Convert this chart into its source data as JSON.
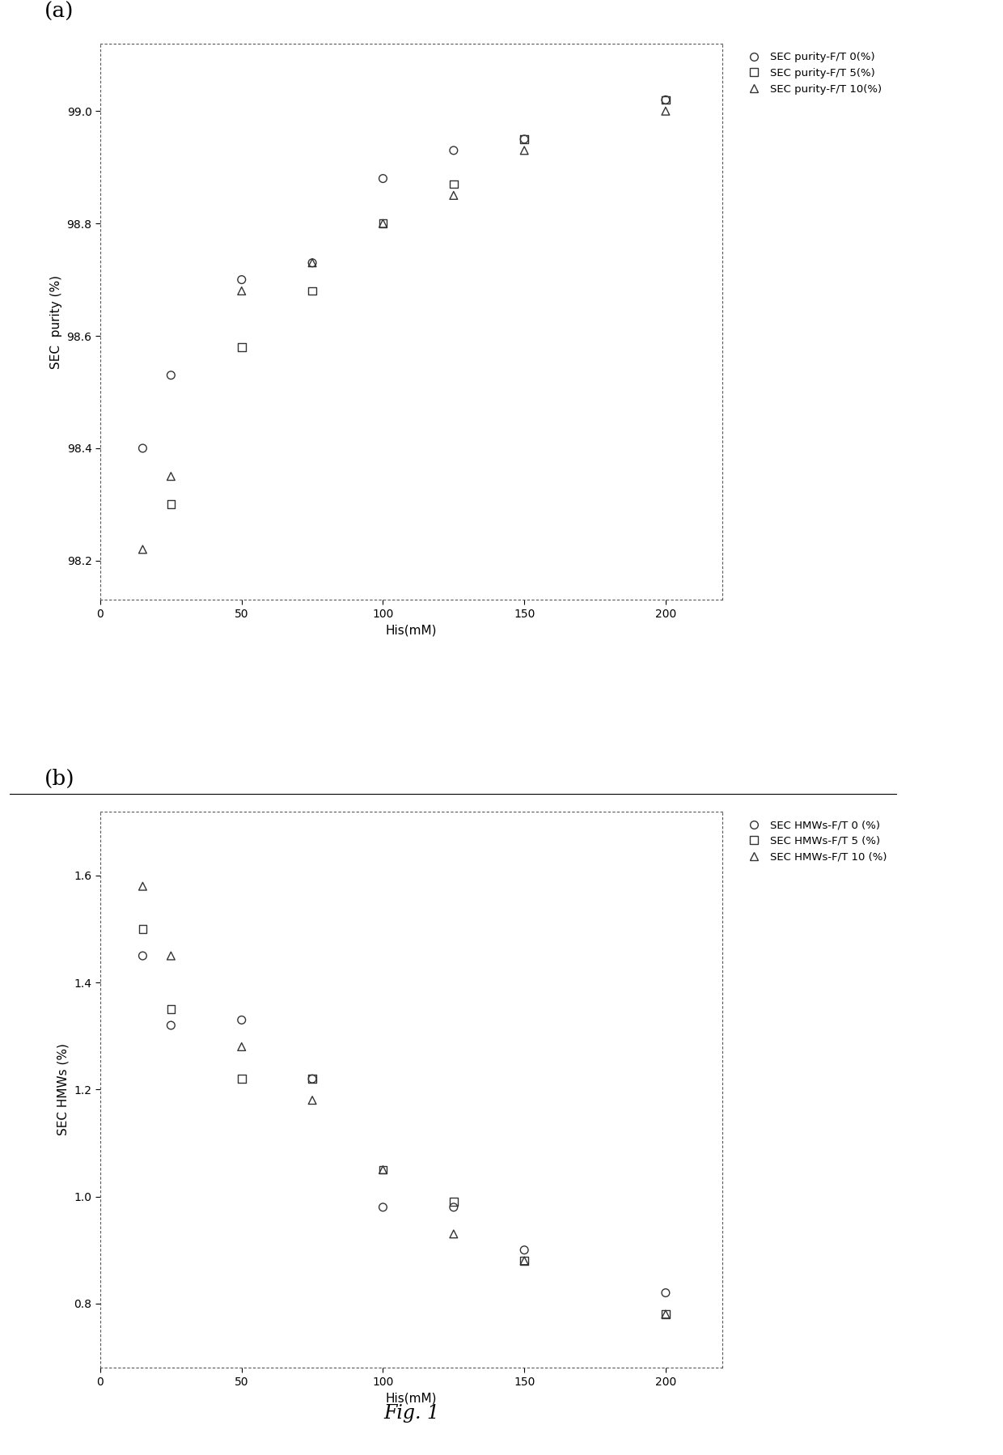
{
  "panel_a": {
    "title": "(a)",
    "xlabel": "His(mM)",
    "ylabel": "SEC  purity (%)",
    "xlim": [
      0,
      220
    ],
    "ylim": [
      98.13,
      99.12
    ],
    "yticks": [
      98.2,
      98.4,
      98.6,
      98.8,
      99.0
    ],
    "xticks": [
      0,
      50,
      100,
      150,
      200
    ],
    "series": {
      "F/T 0": {
        "x": [
          15,
          25,
          50,
          75,
          100,
          125,
          150,
          200
        ],
        "y": [
          98.4,
          98.53,
          98.7,
          98.73,
          98.88,
          98.93,
          98.95,
          99.02
        ],
        "marker": "o",
        "label": "SEC purity-F/T 0(%)"
      },
      "F/T 5": {
        "x": [
          25,
          50,
          75,
          100,
          125,
          150,
          200
        ],
        "y": [
          98.3,
          98.58,
          98.68,
          98.8,
          98.87,
          98.95,
          99.02
        ],
        "marker": "s",
        "label": "SEC purity-F/T 5(%)"
      },
      "F/T 10": {
        "x": [
          15,
          25,
          50,
          75,
          100,
          125,
          150,
          200
        ],
        "y": [
          98.22,
          98.35,
          98.68,
          98.73,
          98.8,
          98.85,
          98.93,
          99.0
        ],
        "marker": "^",
        "label": "SEC purity-F/T 10(%)"
      }
    }
  },
  "panel_b": {
    "title": "(b)",
    "xlabel": "His(mM)",
    "ylabel": "SEC HMWs (%)",
    "xlim": [
      0,
      220
    ],
    "ylim": [
      0.68,
      1.72
    ],
    "yticks": [
      0.8,
      1.0,
      1.2,
      1.4,
      1.6
    ],
    "xticks": [
      0,
      50,
      100,
      150,
      200
    ],
    "series": {
      "F/T 0": {
        "x": [
          15,
          25,
          50,
          75,
          100,
          125,
          150,
          200
        ],
        "y": [
          1.45,
          1.32,
          1.33,
          1.22,
          0.98,
          0.98,
          0.9,
          0.82
        ],
        "marker": "o",
        "label": "SEC HMWs-F/T 0 (%)"
      },
      "F/T 5": {
        "x": [
          15,
          25,
          50,
          75,
          100,
          125,
          150,
          200
        ],
        "y": [
          1.5,
          1.35,
          1.22,
          1.22,
          1.05,
          0.99,
          0.88,
          0.78
        ],
        "marker": "s",
        "label": "SEC HMWs-F/T 5 (%)"
      },
      "F/T 10": {
        "x": [
          15,
          25,
          50,
          75,
          100,
          125,
          150,
          200
        ],
        "y": [
          1.58,
          1.45,
          1.28,
          1.18,
          1.05,
          0.93,
          0.88,
          0.78
        ],
        "marker": "^",
        "label": "SEC HMWs-F/T 10 (%)"
      }
    }
  },
  "fig_label": "Fig. 1",
  "marker_size": 7,
  "marker_color": "#333333",
  "marker_facecolor": "none",
  "legend_fontsize": 9.5,
  "axis_label_fontsize": 11,
  "tick_fontsize": 10,
  "panel_label_fontsize": 19,
  "fig_label_fontsize": 17
}
